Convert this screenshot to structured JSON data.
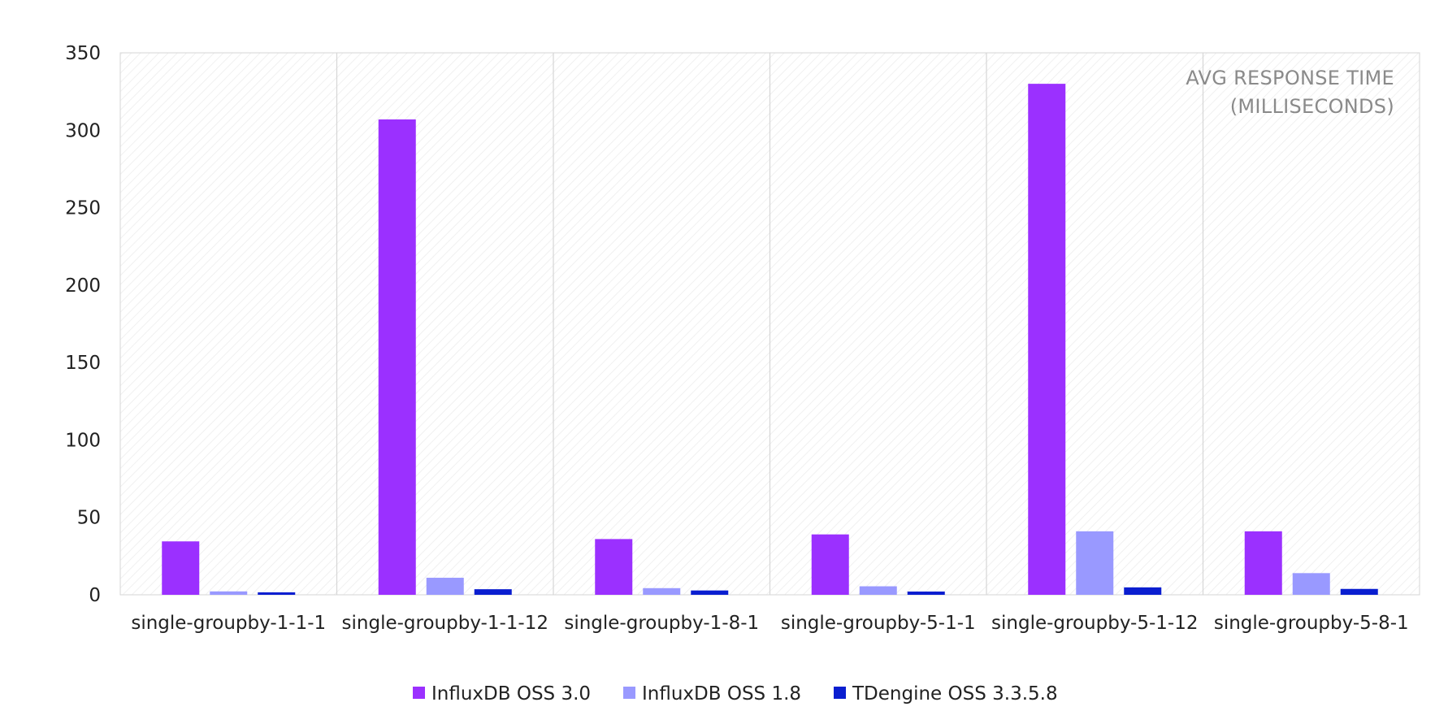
{
  "chart_data": {
    "type": "bar",
    "title": "",
    "xlabel": "",
    "ylabel": "",
    "annotation": [
      "AVG RESPONSE TIME",
      "(MILLISECONDS)"
    ],
    "ylim": [
      0,
      350
    ],
    "yticks": [
      0,
      50,
      100,
      150,
      200,
      250,
      300,
      350
    ],
    "grid": "vertical separators between categories",
    "legend_position": "bottom",
    "categories": [
      "single-groupby-1-1-1",
      "single-groupby-1-1-12",
      "single-groupby-1-8-1",
      "single-groupby-5-1-1",
      "single-groupby-5-1-12",
      "single-groupby-5-8-1"
    ],
    "series": [
      {
        "name": "InfluxDB OSS 3.0",
        "color": "#9b30ff",
        "values": [
          34.5,
          307,
          36,
          39,
          330,
          41
        ]
      },
      {
        "name": "InfluxDB OSS 1.8",
        "color": "#9999ff",
        "values": [
          2.2,
          11,
          4.3,
          5.5,
          41,
          14
        ]
      },
      {
        "name": "TDengine OSS 3.3.5.8",
        "color": "#0a1ed0",
        "values": [
          1.6,
          3.6,
          2.8,
          2.1,
          4.8,
          3.8
        ]
      }
    ]
  }
}
